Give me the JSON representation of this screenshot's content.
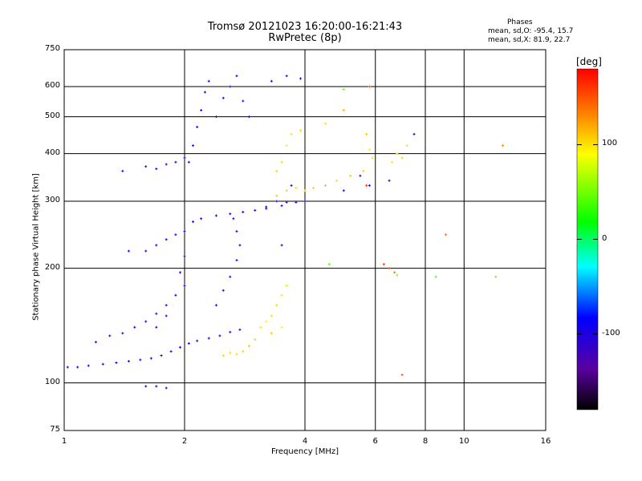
{
  "header": {
    "title": "Tromsø 20121023 16:20:00-16:21:43",
    "subtitle": "RwPretec (8p)",
    "stats_title": "Phases",
    "stats_o": "mean, sd,O: -95.4, 15.7",
    "stats_x": "mean, sd,X:  81.9, 22.7"
  },
  "colorbar": {
    "unit": "[deg]",
    "ticks": [
      "100",
      "0",
      "-100"
    ],
    "tick_values": [
      100,
      0,
      -100
    ],
    "range": [
      -180,
      180
    ]
  },
  "chart_data": {
    "type": "scatter",
    "xlabel": "Frequency [MHz]",
    "ylabel": "Stationary phase Virtual Height [km]",
    "xscale": "log",
    "yscale": "log",
    "xlim": [
      1,
      16
    ],
    "ylim": [
      75,
      750
    ],
    "xticks": [
      1,
      2,
      4,
      6,
      8,
      10,
      16
    ],
    "xtick_labels": [
      "1",
      "2",
      "4",
      "6",
      "8",
      "10",
      "16"
    ],
    "yticks": [
      75,
      100,
      200,
      300,
      400,
      500,
      600,
      750
    ],
    "ytick_labels": [
      "75",
      "100",
      "200",
      "300",
      "400",
      "500",
      "600",
      "750"
    ],
    "grid": true,
    "series": [
      {
        "points": [
          [
            1.02,
            110,
            -95
          ],
          [
            1.08,
            110,
            -95
          ],
          [
            1.15,
            111,
            -95
          ],
          [
            1.25,
            112,
            -95
          ],
          [
            1.35,
            113,
            -95
          ],
          [
            1.45,
            114,
            -95
          ],
          [
            1.55,
            115,
            -95
          ],
          [
            1.65,
            116,
            -95
          ],
          [
            1.75,
            118,
            -95
          ],
          [
            1.85,
            121,
            -95
          ],
          [
            1.95,
            124,
            -95
          ],
          [
            2.05,
            127,
            -95
          ],
          [
            2.15,
            129,
            -95
          ],
          [
            2.3,
            131,
            -95
          ],
          [
            2.45,
            133,
            -95
          ],
          [
            2.6,
            136,
            -95
          ],
          [
            2.75,
            138,
            -95
          ],
          [
            1.2,
            128,
            -100
          ],
          [
            1.3,
            133,
            -100
          ],
          [
            1.4,
            135,
            -100
          ],
          [
            1.5,
            140,
            -100
          ],
          [
            1.6,
            145,
            -100
          ],
          [
            1.7,
            152,
            -100
          ],
          [
            1.8,
            160,
            -100
          ],
          [
            1.9,
            170,
            -100
          ],
          [
            2.0,
            180,
            -100
          ],
          [
            1.95,
            195,
            -100
          ],
          [
            2.0,
            215,
            -100
          ],
          [
            1.7,
            140,
            -100
          ],
          [
            1.8,
            150,
            -100
          ],
          [
            2.4,
            160,
            -100
          ],
          [
            2.5,
            175,
            -100
          ],
          [
            2.6,
            190,
            -100
          ],
          [
            2.7,
            210,
            -100
          ],
          [
            2.75,
            230,
            -100
          ],
          [
            2.7,
            250,
            -100
          ],
          [
            2.65,
            270,
            -100
          ],
          [
            1.6,
            222,
            -95
          ],
          [
            1.7,
            230,
            -95
          ],
          [
            1.8,
            238,
            -95
          ],
          [
            1.9,
            245,
            -95
          ],
          [
            2.0,
            250,
            -95
          ],
          [
            2.1,
            265,
            -95
          ],
          [
            2.2,
            270,
            -95
          ],
          [
            2.4,
            275,
            -95
          ],
          [
            2.6,
            278,
            -95
          ],
          [
            2.8,
            281,
            -95
          ],
          [
            3.0,
            284,
            -95
          ],
          [
            3.2,
            287,
            -95
          ],
          [
            3.5,
            292,
            -95
          ],
          [
            3.8,
            298,
            -95
          ],
          [
            4.0,
            300,
            -95
          ],
          [
            2.05,
            380,
            -100
          ],
          [
            2.1,
            420,
            -100
          ],
          [
            2.15,
            470,
            -100
          ],
          [
            2.2,
            520,
            -100
          ],
          [
            2.25,
            580,
            -100
          ],
          [
            2.3,
            620,
            -100
          ],
          [
            2.4,
            500,
            -100
          ],
          [
            2.5,
            560,
            -100
          ],
          [
            2.6,
            600,
            -100
          ],
          [
            2.7,
            640,
            -100
          ],
          [
            2.8,
            550,
            -100
          ],
          [
            2.9,
            500,
            -100
          ],
          [
            1.6,
            370,
            -95
          ],
          [
            1.7,
            365,
            -95
          ],
          [
            1.8,
            375,
            -95
          ],
          [
            1.9,
            380,
            -95
          ],
          [
            2.0,
            390,
            -95
          ],
          [
            1.6,
            98,
            -100
          ],
          [
            1.7,
            98,
            -100
          ],
          [
            1.8,
            97,
            -100
          ],
          [
            1.45,
            222,
            -100
          ],
          [
            1.4,
            360,
            -100
          ],
          [
            3.4,
            300,
            -120
          ],
          [
            3.6,
            298,
            -120
          ],
          [
            3.2,
            290,
            -120
          ],
          [
            3.5,
            230,
            -100
          ],
          [
            3.7,
            330,
            -100
          ],
          [
            3.3,
            620,
            -100
          ],
          [
            3.6,
            640,
            -100
          ],
          [
            3.9,
            630,
            -100
          ],
          [
            5.0,
            320,
            -95
          ],
          [
            5.5,
            350,
            -100
          ],
          [
            5.8,
            330,
            -100
          ],
          [
            6.5,
            340,
            -100
          ],
          [
            7.5,
            450,
            -100
          ]
        ]
      },
      {
        "points": [
          [
            2.9,
            125,
            110
          ],
          [
            3.0,
            130,
            105
          ],
          [
            3.1,
            140,
            100
          ],
          [
            3.2,
            145,
            95
          ],
          [
            3.3,
            150,
            100
          ],
          [
            3.4,
            160,
            105
          ],
          [
            3.5,
            170,
            100
          ],
          [
            3.3,
            135,
            110
          ],
          [
            3.5,
            140,
            95
          ],
          [
            3.6,
            180,
            100
          ],
          [
            3.4,
            310,
            110
          ],
          [
            3.6,
            320,
            105
          ],
          [
            3.8,
            325,
            100
          ],
          [
            4.0,
            320,
            110
          ],
          [
            4.2,
            325,
            105
          ],
          [
            4.5,
            330,
            115
          ],
          [
            4.8,
            340,
            100
          ],
          [
            5.2,
            350,
            110
          ],
          [
            5.6,
            360,
            105
          ],
          [
            5.9,
            390,
            100
          ],
          [
            5.7,
            450,
            110
          ],
          [
            5.8,
            410,
            95
          ],
          [
            3.4,
            360,
            105
          ],
          [
            3.5,
            380,
            105
          ],
          [
            3.6,
            420,
            95
          ],
          [
            3.7,
            450,
            100
          ],
          [
            3.9,
            460,
            105
          ],
          [
            4.5,
            480,
            100
          ],
          [
            5.0,
            520,
            115
          ],
          [
            6.6,
            380,
            100
          ],
          [
            6.8,
            400,
            95
          ],
          [
            7.0,
            390,
            105
          ],
          [
            7.2,
            420,
            100
          ],
          [
            2.5,
            118,
            105
          ],
          [
            2.6,
            120,
            105
          ],
          [
            2.7,
            119,
            105
          ],
          [
            2.8,
            121,
            105
          ]
        ]
      },
      {
        "points": [
          [
            6.5,
            200,
            150
          ],
          [
            6.7,
            195,
            140
          ],
          [
            6.3,
            205,
            160
          ],
          [
            7.0,
            105,
            150
          ],
          [
            9.0,
            245,
            140
          ],
          [
            12.5,
            420,
            130
          ],
          [
            5.8,
            600,
            150
          ],
          [
            5.7,
            330,
            160
          ]
        ]
      },
      {
        "points": [
          [
            8.5,
            190,
            40
          ],
          [
            5.0,
            590,
            45
          ],
          [
            6.8,
            192,
            55
          ],
          [
            12.0,
            190,
            45
          ],
          [
            4.6,
            205,
            40
          ]
        ]
      }
    ]
  }
}
